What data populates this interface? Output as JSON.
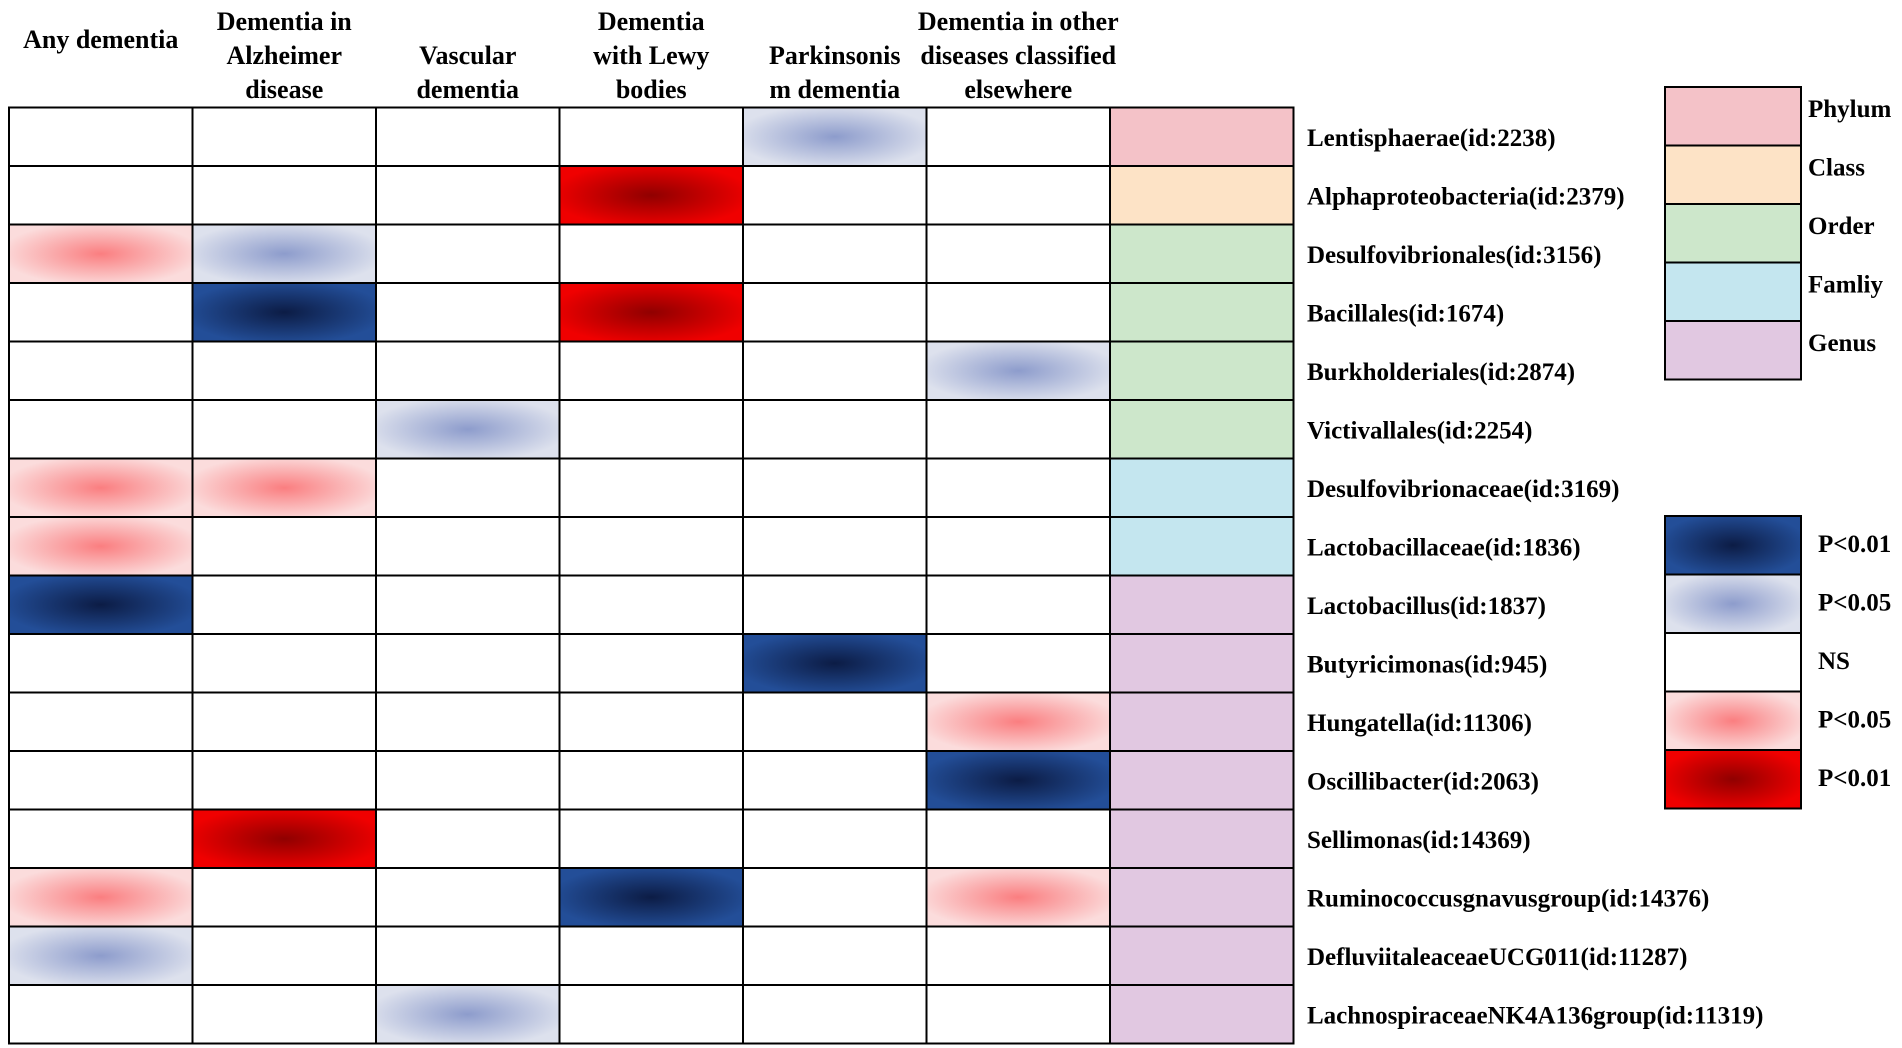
{
  "chart_data": {
    "type": "heatmap",
    "columns": [
      [
        "Any dementia"
      ],
      [
        "Dementia in",
        "Alzheimer",
        "disease"
      ],
      [
        "Vascular",
        "dementia"
      ],
      [
        "Dementia",
        "with Lewy",
        "bodies"
      ],
      [
        "Parkinsonis",
        "m dementia"
      ],
      [
        "Dementia in other",
        "diseases classified",
        "elsewhere"
      ]
    ],
    "rows": [
      {
        "label": "Lentisphaerae(id:2238)",
        "level": "Phylum",
        "values": [
          "NS",
          "NS",
          "NS",
          "NS",
          "neg_p005",
          "NS"
        ]
      },
      {
        "label": "Alphaproteobacteria(id:2379)",
        "level": "Class",
        "values": [
          "NS",
          "NS",
          "NS",
          "pos_p001",
          "NS",
          "NS"
        ]
      },
      {
        "label": "Desulfovibrionales(id:3156)",
        "level": "Order",
        "values": [
          "pos_p005",
          "neg_p005",
          "NS",
          "NS",
          "NS",
          "NS"
        ]
      },
      {
        "label": "Bacillales(id:1674)",
        "level": "Order",
        "values": [
          "NS",
          "neg_p001",
          "NS",
          "pos_p001",
          "NS",
          "NS"
        ]
      },
      {
        "label": "Burkholderiales(id:2874)",
        "level": "Order",
        "values": [
          "NS",
          "NS",
          "NS",
          "NS",
          "NS",
          "neg_p005"
        ]
      },
      {
        "label": "Victivallales(id:2254)",
        "level": "Order",
        "values": [
          "NS",
          "NS",
          "neg_p005",
          "NS",
          "NS",
          "NS"
        ]
      },
      {
        "label": "Desulfovibrionaceae(id:3169)",
        "level": "Famliy",
        "values": [
          "pos_p005",
          "pos_p005",
          "NS",
          "NS",
          "NS",
          "NS"
        ]
      },
      {
        "label": "Lactobacillaceae(id:1836)",
        "level": "Famliy",
        "values": [
          "pos_p005",
          "NS",
          "NS",
          "NS",
          "NS",
          "NS"
        ]
      },
      {
        "label": "Lactobacillus(id:1837)",
        "level": "Genus",
        "values": [
          "neg_p001",
          "NS",
          "NS",
          "NS",
          "NS",
          "NS"
        ]
      },
      {
        "label": "Butyricimonas(id:945)",
        "level": "Genus",
        "values": [
          "NS",
          "NS",
          "NS",
          "NS",
          "neg_p001",
          "NS"
        ]
      },
      {
        "label": "Hungatella(id:11306)",
        "level": "Genus",
        "values": [
          "NS",
          "NS",
          "NS",
          "NS",
          "NS",
          "pos_p005"
        ]
      },
      {
        "label": "Oscillibacter(id:2063)",
        "level": "Genus",
        "values": [
          "NS",
          "NS",
          "NS",
          "NS",
          "NS",
          "neg_p001"
        ]
      },
      {
        "label": "Sellimonas(id:14369)",
        "level": "Genus",
        "values": [
          "NS",
          "pos_p001",
          "NS",
          "NS",
          "NS",
          "NS"
        ]
      },
      {
        "label": "Ruminococcusgnavusgroup(id:14376)",
        "level": "Genus",
        "values": [
          "pos_p005",
          "NS",
          "NS",
          "neg_p001",
          "NS",
          "pos_p005"
        ]
      },
      {
        "label": "DefluviitaleaceaeUCG011(id:11287)",
        "level": "Genus",
        "values": [
          "neg_p005",
          "NS",
          "NS",
          "NS",
          "NS",
          "NS"
        ]
      },
      {
        "label": "LachnospiraceaeNK4A136group(id:11319)",
        "level": "Genus",
        "values": [
          "NS",
          "NS",
          "neg_p005",
          "NS",
          "NS",
          "NS"
        ]
      }
    ],
    "taxonomy_legend": [
      {
        "label": "Phylum",
        "color": "#f4c2c8"
      },
      {
        "label": "Class",
        "color": "#fde3c6"
      },
      {
        "label": "Order",
        "color": "#cde7cb"
      },
      {
        "label": "Famliy",
        "color": "#c4e6ef"
      },
      {
        "label": "Genus",
        "color": "#e1c8e1"
      }
    ],
    "significance_legend": [
      {
        "key": "neg_p001",
        "label": "P<0.01",
        "edge": "#234e98",
        "center": "#0c1c45"
      },
      {
        "key": "neg_p005",
        "label": "P<0.05",
        "edge": "#dde1ed",
        "center": "#8d9ccc"
      },
      {
        "key": "NS",
        "label": "NS",
        "edge": "#ffffff",
        "center": "#ffffff"
      },
      {
        "key": "pos_p005",
        "label": "P<0.05",
        "edge": "#fbdcdc",
        "center": "#fa7e80"
      },
      {
        "key": "pos_p001",
        "label": "P<0.01",
        "edge": "#f00000",
        "center": "#900000"
      }
    ]
  }
}
